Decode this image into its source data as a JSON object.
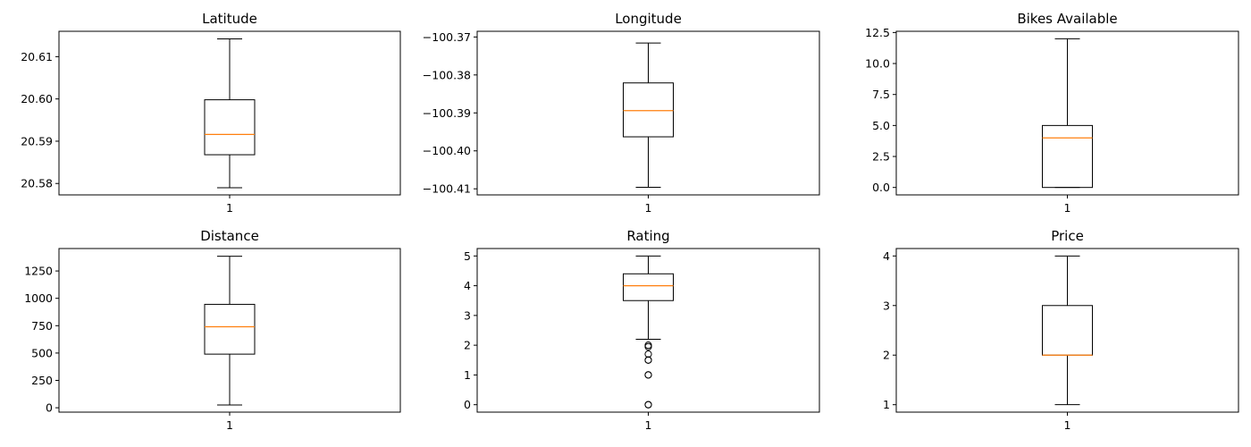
{
  "chart_data": [
    {
      "type": "boxplot",
      "title": "Latitude",
      "categories": [
        "1"
      ],
      "ylim": [
        20.5773,
        20.616
      ],
      "yticks": [
        20.58,
        20.59,
        20.6,
        20.61
      ],
      "ytick_labels": [
        "20.58",
        "20.59",
        "20.60",
        "20.61"
      ],
      "box": {
        "whislo": 20.579,
        "q1": 20.5868,
        "med": 20.5916,
        "q3": 20.5998,
        "whishi": 20.6142,
        "fliers": []
      }
    },
    {
      "type": "boxplot",
      "title": "Longitude",
      "categories": [
        "1"
      ],
      "ylim": [
        -100.4116,
        -100.3685
      ],
      "yticks": [
        -100.41,
        -100.4,
        -100.39,
        -100.38,
        -100.37
      ],
      "ytick_labels": [
        "−100.41",
        "−100.40",
        "−100.39",
        "−100.38",
        "−100.37"
      ],
      "box": {
        "whislo": -100.4096,
        "q1": -100.3963,
        "med": -100.3894,
        "q3": -100.3821,
        "whishi": -100.3716,
        "fliers": []
      }
    },
    {
      "type": "boxplot",
      "title": "Bikes Available",
      "categories": [
        "1"
      ],
      "ylim": [
        -0.6,
        12.6
      ],
      "yticks": [
        0,
        2.5,
        5,
        7.5,
        10,
        12.5
      ],
      "ytick_labels": [
        "0.0",
        "2.5",
        "5.0",
        "7.5",
        "10.0",
        "12.5"
      ],
      "box": {
        "whislo": 0,
        "q1": 0,
        "med": 4,
        "q3": 5,
        "whishi": 12,
        "fliers": []
      }
    },
    {
      "type": "boxplot",
      "title": "Distance",
      "categories": [
        "1"
      ],
      "ylim": [
        -40,
        1455
      ],
      "yticks": [
        0,
        250,
        500,
        750,
        1000,
        1250
      ],
      "ytick_labels": [
        "0",
        "250",
        "500",
        "750",
        "1000",
        "1250"
      ],
      "box": {
        "whislo": 25,
        "q1": 490,
        "med": 740,
        "q3": 945,
        "whishi": 1385,
        "fliers": []
      }
    },
    {
      "type": "boxplot",
      "title": "Rating",
      "categories": [
        "1"
      ],
      "ylim": [
        -0.25,
        5.25
      ],
      "yticks": [
        0,
        1,
        2,
        3,
        4,
        5
      ],
      "ytick_labels": [
        "0",
        "1",
        "2",
        "3",
        "4",
        "5"
      ],
      "box": {
        "whislo": 2.2,
        "q1": 3.5,
        "med": 4,
        "q3": 4.4,
        "whishi": 5,
        "fliers": [
          2,
          1.95,
          1.7,
          1.5,
          1.5,
          1,
          1,
          0,
          0
        ]
      }
    },
    {
      "type": "boxplot",
      "title": "Price",
      "categories": [
        "1"
      ],
      "ylim": [
        0.85,
        4.15
      ],
      "yticks": [
        1,
        2,
        3,
        4
      ],
      "ytick_labels": [
        "1",
        "2",
        "3",
        "4"
      ],
      "box": {
        "whislo": 1,
        "q1": 2,
        "med": 2,
        "q3": 3,
        "whishi": 4,
        "fliers": []
      }
    }
  ]
}
